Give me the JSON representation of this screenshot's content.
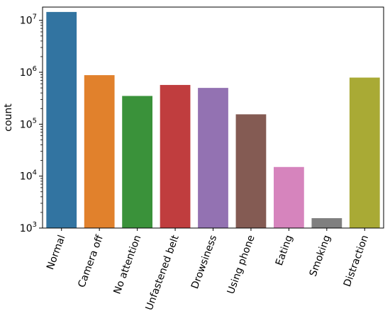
{
  "chart_data": {
    "type": "bar",
    "title": "",
    "xlabel": "",
    "ylabel": "count",
    "yscale": "log",
    "ylim": [
      1000,
      18000000
    ],
    "grid": false,
    "legend": "none",
    "categories": [
      "Normal",
      "Camera off",
      "No attention",
      "Unfastened belt",
      "Drowsiness",
      "Using phone",
      "Eating",
      "Smoking",
      "Distraction"
    ],
    "values": [
      14500000,
      880000,
      350000,
      570000,
      500000,
      155000,
      15000,
      1550,
      790000
    ],
    "colors": [
      "#3274a1",
      "#e1812c",
      "#3a923a",
      "#c03d3e",
      "#9372b2",
      "#845b53",
      "#d684bd",
      "#7f7f7f",
      "#a9aa35"
    ],
    "yticks": [
      {
        "value": 1000,
        "base": "10",
        "exp": "3"
      },
      {
        "value": 10000,
        "base": "10",
        "exp": "4"
      },
      {
        "value": 100000,
        "base": "10",
        "exp": "5"
      },
      {
        "value": 1000000,
        "base": "10",
        "exp": "6"
      },
      {
        "value": 10000000,
        "base": "10",
        "exp": "7"
      }
    ]
  }
}
